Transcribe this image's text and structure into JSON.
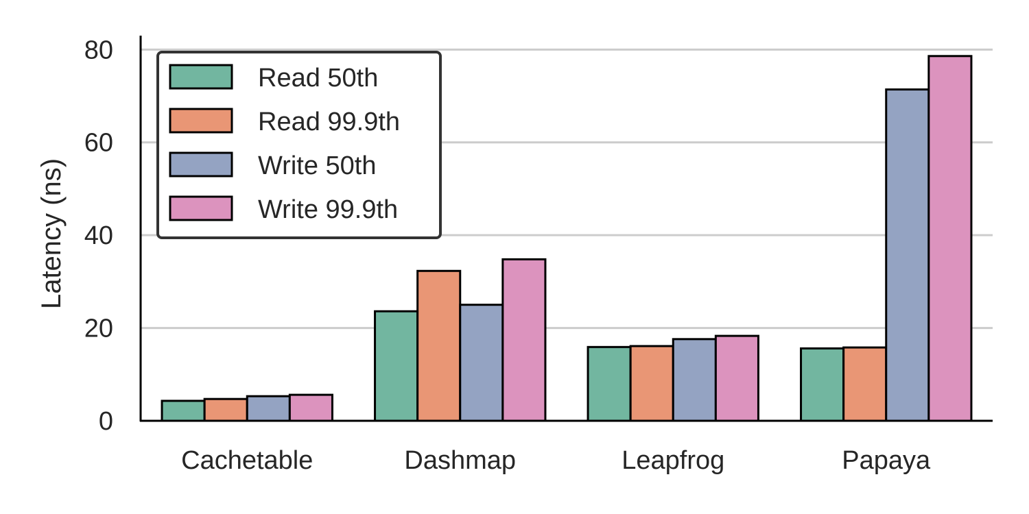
{
  "chart_data": {
    "type": "bar",
    "title": "",
    "xlabel": "",
    "ylabel": "Latency (ns)",
    "categories": [
      "Cachetable",
      "Dashmap",
      "Leapfrog",
      "Papaya"
    ],
    "series": [
      {
        "name": "Read 50th",
        "color": "#72b6a0",
        "values": [
          4.3,
          23.6,
          15.9,
          15.6
        ]
      },
      {
        "name": "Read 99.9th",
        "color": "#e99675",
        "values": [
          4.7,
          32.3,
          16.1,
          15.8
        ]
      },
      {
        "name": "Write 50th",
        "color": "#94a3c2",
        "values": [
          5.3,
          25.0,
          17.6,
          71.4
        ]
      },
      {
        "name": "Write 99.9th",
        "color": "#dc93be",
        "values": [
          5.6,
          34.8,
          18.3,
          78.6
        ]
      }
    ],
    "ylim": [
      0,
      83
    ],
    "yticks": [
      0,
      20,
      40,
      60,
      80
    ],
    "grid": "horizontal",
    "legend_position": "top-left"
  }
}
